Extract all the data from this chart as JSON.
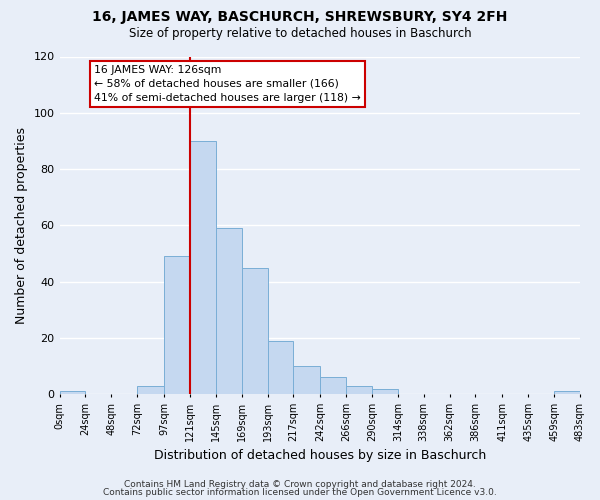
{
  "title": "16, JAMES WAY, BASCHURCH, SHREWSBURY, SY4 2FH",
  "subtitle": "Size of property relative to detached houses in Baschurch",
  "xlabel": "Distribution of detached houses by size in Baschurch",
  "ylabel": "Number of detached properties",
  "bar_color": "#c5d8f0",
  "bar_edge_color": "#7aaed6",
  "bin_edges": [
    0,
    24,
    48,
    72,
    97,
    121,
    145,
    169,
    193,
    217,
    242,
    266,
    290,
    314,
    338,
    362,
    386,
    411,
    435,
    459,
    483
  ],
  "bin_labels": [
    "0sqm",
    "24sqm",
    "48sqm",
    "72sqm",
    "97sqm",
    "121sqm",
    "145sqm",
    "169sqm",
    "193sqm",
    "217sqm",
    "242sqm",
    "266sqm",
    "290sqm",
    "314sqm",
    "338sqm",
    "362sqm",
    "386sqm",
    "411sqm",
    "435sqm",
    "459sqm",
    "483sqm"
  ],
  "counts": [
    1,
    0,
    0,
    3,
    49,
    90,
    59,
    45,
    19,
    10,
    6,
    3,
    2,
    0,
    0,
    0,
    0,
    0,
    0,
    1
  ],
  "vline_x": 121,
  "annotation_text": "16 JAMES WAY: 126sqm\n← 58% of detached houses are smaller (166)\n41% of semi-detached houses are larger (118) →",
  "annotation_box_color": "white",
  "annotation_box_edge_color": "#cc0000",
  "vline_color": "#cc0000",
  "ylim": [
    0,
    120
  ],
  "yticks": [
    0,
    20,
    40,
    60,
    80,
    100,
    120
  ],
  "footer_line1": "Contains HM Land Registry data © Crown copyright and database right 2024.",
  "footer_line2": "Contains public sector information licensed under the Open Government Licence v3.0.",
  "background_color": "#e8eef8",
  "grid_color": "#ffffff"
}
